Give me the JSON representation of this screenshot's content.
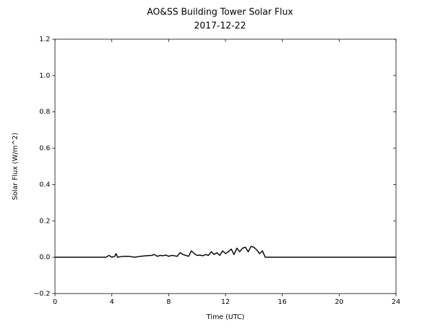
{
  "chart_data": {
    "type": "line",
    "title": "AO&SS Building Tower Solar Flux",
    "subtitle": "2017-12-22",
    "x_label": "Time (UTC)",
    "y_label": "Solar Flux (W/m^2)",
    "xlim": [
      0,
      24
    ],
    "xticks": [
      0,
      4,
      8,
      12,
      16,
      20,
      24
    ],
    "ylim": [
      -0.2,
      1.2
    ],
    "yticks": [
      {
        "value": -0.2,
        "label": "−0.2"
      },
      {
        "value": 0,
        "label": "0.0"
      },
      {
        "value": 0.2,
        "label": "0.2"
      },
      {
        "value": 0.4,
        "label": "0.4"
      },
      {
        "value": 0.6,
        "label": "0.6"
      },
      {
        "value": 0.8,
        "label": "0.8"
      },
      {
        "value": 1,
        "label": "1.0"
      },
      {
        "value": 1.2,
        "label": "1.2"
      }
    ],
    "grid": false,
    "color": "#000000",
    "x": [
      0,
      3.6,
      3.8,
      4.0,
      4.2,
      4.3,
      4.4,
      4.8,
      5.2,
      5.6,
      6.0,
      6.4,
      6.8,
      7.0,
      7.2,
      7.4,
      7.6,
      7.8,
      8.0,
      8.2,
      8.4,
      8.6,
      8.8,
      9.0,
      9.2,
      9.4,
      9.6,
      9.8,
      10.0,
      10.2,
      10.4,
      10.6,
      10.8,
      11.0,
      11.2,
      11.4,
      11.6,
      11.8,
      12.0,
      12.2,
      12.4,
      12.6,
      12.8,
      13.0,
      13.2,
      13.4,
      13.6,
      13.8,
      14.0,
      14.2,
      14.4,
      14.6,
      14.8,
      24
    ],
    "values": [
      0,
      0,
      0.01,
      0,
      0.005,
      0.02,
      0,
      0.005,
      0.005,
      0,
      0.005,
      0.008,
      0.01,
      0.015,
      0.005,
      0.01,
      0.008,
      0.012,
      0.005,
      0.01,
      0.008,
      0.005,
      0.025,
      0.015,
      0.01,
      0.005,
      0.035,
      0.02,
      0.01,
      0.012,
      0.008,
      0.015,
      0.01,
      0.03,
      0.015,
      0.025,
      0.01,
      0.035,
      0.02,
      0.03,
      0.045,
      0.015,
      0.05,
      0.03,
      0.05,
      0.055,
      0.03,
      0.06,
      0.055,
      0.04,
      0.02,
      0.035,
      0,
      0
    ]
  }
}
